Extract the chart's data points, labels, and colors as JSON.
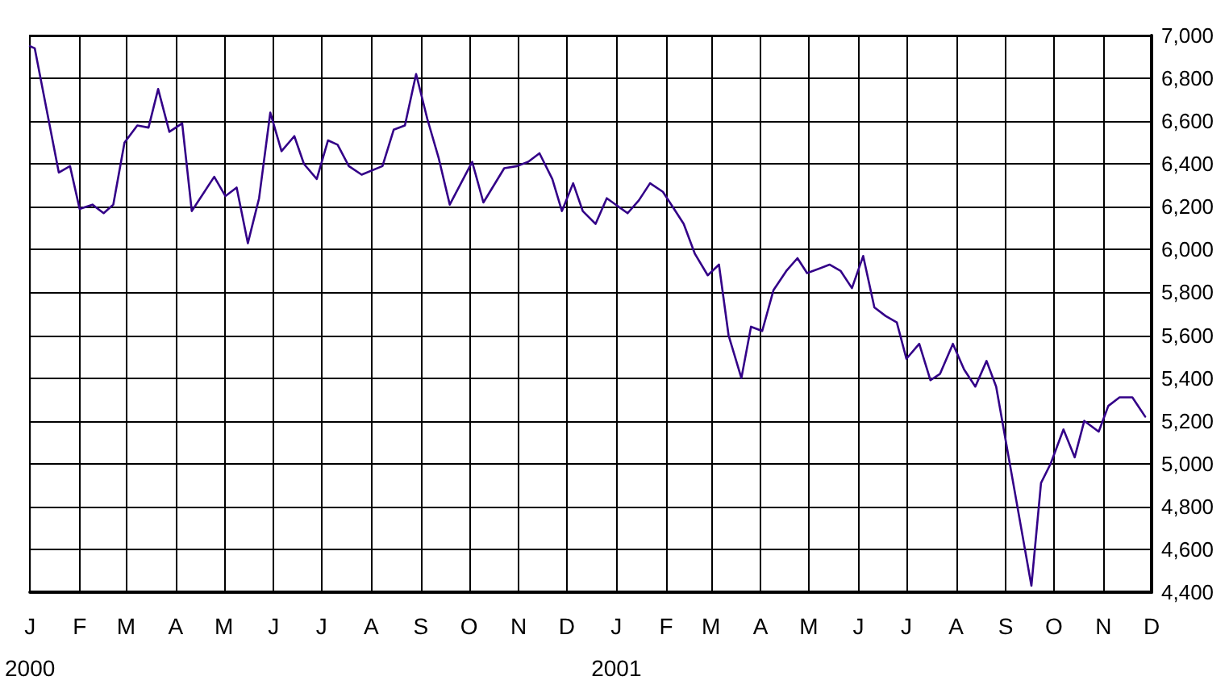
{
  "chart_data": {
    "type": "line",
    "x": [
      "2000-01-01",
      "2000-01-04",
      "2000-01-19",
      "2000-01-26",
      "2000-02-01",
      "2000-02-09",
      "2000-02-16",
      "2000-02-22",
      "2000-02-29",
      "2000-03-08",
      "2000-03-15",
      "2000-03-21",
      "2000-03-28",
      "2000-04-05",
      "2000-04-11",
      "2000-04-25",
      "2000-05-02",
      "2000-05-09",
      "2000-05-16",
      "2000-05-23",
      "2000-05-30",
      "2000-06-06",
      "2000-06-14",
      "2000-06-20",
      "2000-06-28",
      "2000-07-05",
      "2000-07-11",
      "2000-07-18",
      "2000-07-26",
      "2000-08-08",
      "2000-08-15",
      "2000-08-22",
      "2000-08-29",
      "2000-09-05",
      "2000-09-12",
      "2000-09-19",
      "2000-10-03",
      "2000-10-10",
      "2000-10-23",
      "2000-10-31",
      "2000-11-07",
      "2000-11-14",
      "2000-11-22",
      "2000-11-28",
      "2000-12-05",
      "2000-12-11",
      "2000-12-19",
      "2000-12-26",
      "2001-01-08",
      "2001-01-15",
      "2001-01-22",
      "2001-01-30",
      "2001-02-06",
      "2001-02-12",
      "2001-02-19",
      "2001-02-27",
      "2001-03-06",
      "2001-03-12",
      "2001-03-20",
      "2001-03-26",
      "2001-04-02",
      "2001-04-09",
      "2001-04-17",
      "2001-04-24",
      "2001-04-30",
      "2001-05-14",
      "2001-05-21",
      "2001-05-28",
      "2001-06-04",
      "2001-06-11",
      "2001-06-18",
      "2001-06-25",
      "2001-07-01",
      "2001-07-09",
      "2001-07-16",
      "2001-07-22",
      "2001-07-30",
      "2001-08-06",
      "2001-08-13",
      "2001-08-20",
      "2001-08-26",
      "2001-09-17",
      "2001-09-23",
      "2001-09-29",
      "2001-10-07",
      "2001-10-14",
      "2001-10-20",
      "2001-10-29",
      "2001-11-04",
      "2001-11-11",
      "2001-11-19",
      "2001-11-27"
    ],
    "series": [
      {
        "color": "#330088",
        "values": [
          6950,
          6940,
          6360,
          6390,
          6190,
          6210,
          6170,
          6210,
          6500,
          6580,
          6570,
          6750,
          6550,
          6590,
          6180,
          6340,
          6250,
          6290,
          6030,
          6240,
          6640,
          6460,
          6530,
          6400,
          6330,
          6510,
          6490,
          6390,
          6350,
          6390,
          6560,
          6580,
          6820,
          6610,
          6430,
          6210,
          6410,
          6220,
          6380,
          6390,
          6410,
          6450,
          6330,
          6180,
          6310,
          6180,
          6120,
          6240,
          6170,
          6230,
          6310,
          6270,
          6190,
          6120,
          5980,
          5880,
          5930,
          5600,
          5400,
          5640,
          5620,
          5810,
          5900,
          5960,
          5890,
          5930,
          5900,
          5820,
          5970,
          5730,
          5690,
          5660,
          5490,
          5560,
          5390,
          5420,
          5560,
          5440,
          5360,
          5480,
          5360,
          4430,
          4910,
          5000,
          5160,
          5030,
          5200,
          5150,
          5270,
          5310,
          5310,
          5220
        ]
      }
    ],
    "xlim": [
      "2000-01-01",
      "2001-12-01"
    ],
    "xticks": [
      {
        "value": "2000-01-01",
        "label": "J\n2000"
      },
      {
        "value": "2000-02-01",
        "label": "F"
      },
      {
        "value": "2000-03-01",
        "label": "M"
      },
      {
        "value": "2000-04-01",
        "label": "A"
      },
      {
        "value": "2000-05-01",
        "label": "M"
      },
      {
        "value": "2000-06-01",
        "label": "J"
      },
      {
        "value": "2000-07-01",
        "label": "J"
      },
      {
        "value": "2000-08-01",
        "label": "A"
      },
      {
        "value": "2000-09-01",
        "label": "S"
      },
      {
        "value": "2000-10-01",
        "label": "O"
      },
      {
        "value": "2000-11-01",
        "label": "N"
      },
      {
        "value": "2000-12-01",
        "label": "D"
      },
      {
        "value": "2001-01-01",
        "label": "J\n2001"
      },
      {
        "value": "2001-02-01",
        "label": "F"
      },
      {
        "value": "2001-03-01",
        "label": "M"
      },
      {
        "value": "2001-04-01",
        "label": "A"
      },
      {
        "value": "2001-05-01",
        "label": "M"
      },
      {
        "value": "2001-06-01",
        "label": "J"
      },
      {
        "value": "2001-07-01",
        "label": "J"
      },
      {
        "value": "2001-08-01",
        "label": "A"
      },
      {
        "value": "2001-09-01",
        "label": "S"
      },
      {
        "value": "2001-10-01",
        "label": "O"
      },
      {
        "value": "2001-11-01",
        "label": "N"
      },
      {
        "value": "2001-12-01",
        "label": "D"
      }
    ],
    "ylim": [
      4400,
      7000
    ],
    "yticks": [
      {
        "value": 4400,
        "label": "4,400"
      },
      {
        "value": 4600,
        "label": "4,600"
      },
      {
        "value": 4800,
        "label": "4,800"
      },
      {
        "value": 5000,
        "label": "5,000"
      },
      {
        "value": 5200,
        "label": "5,200"
      },
      {
        "value": 5400,
        "label": "5,400"
      },
      {
        "value": 5600,
        "label": "5,600"
      },
      {
        "value": 5800,
        "label": "5,800"
      },
      {
        "value": 6000,
        "label": "6,000"
      },
      {
        "value": 6200,
        "label": "6,200"
      },
      {
        "value": 6400,
        "label": "6,400"
      },
      {
        "value": 6600,
        "label": "6,600"
      },
      {
        "value": 6800,
        "label": "6,800"
      },
      {
        "value": 7000,
        "label": "7,000"
      }
    ],
    "grid": true,
    "marker": "none",
    "line_style": "solid"
  }
}
